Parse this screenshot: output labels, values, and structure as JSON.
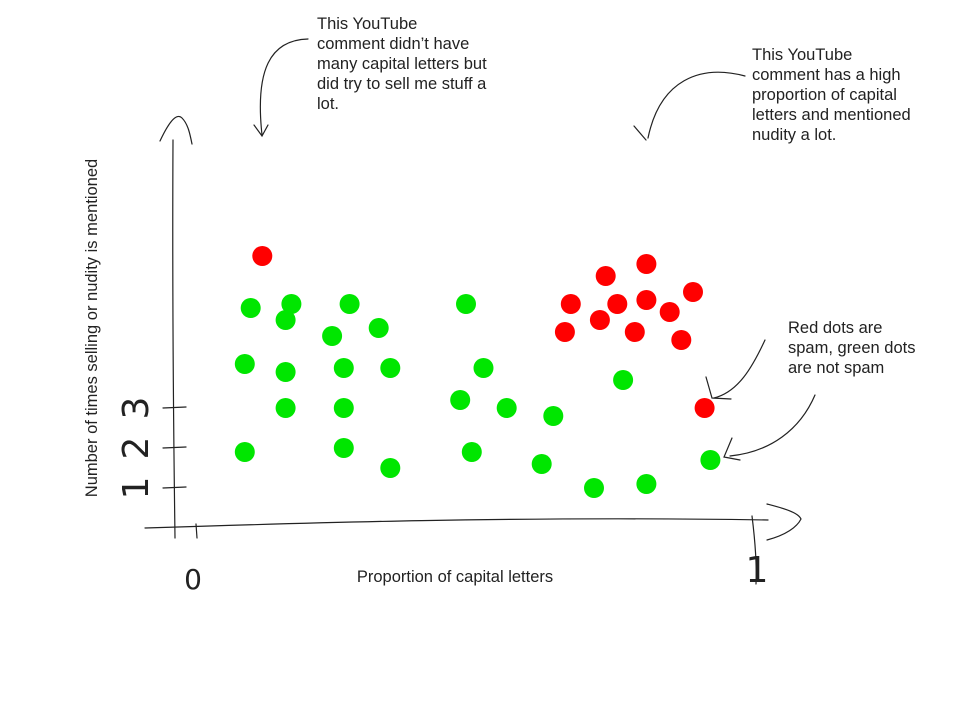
{
  "chart_data": {
    "type": "scatter",
    "xlabel": "Proportion of capital letters",
    "ylabel": "Number of times selling or nudity is mentioned",
    "xlim": [
      0,
      1
    ],
    "x_tick_labels": [
      "0",
      "1"
    ],
    "y_tick_labels": [
      "1",
      "2",
      "3"
    ],
    "y_ticks": [
      1,
      2,
      3
    ],
    "grid": false,
    "series": [
      {
        "color": "#ff0000",
        "points": [
          {
            "x": 0.15,
            "y": 6.8
          },
          {
            "x": 0.81,
            "y": 6.6
          },
          {
            "x": 0.74,
            "y": 6.3
          },
          {
            "x": 0.89,
            "y": 5.9
          },
          {
            "x": 0.81,
            "y": 5.7
          },
          {
            "x": 0.68,
            "y": 5.6
          },
          {
            "x": 0.76,
            "y": 5.6
          },
          {
            "x": 0.85,
            "y": 5.4
          },
          {
            "x": 0.73,
            "y": 5.2
          },
          {
            "x": 0.67,
            "y": 4.9
          },
          {
            "x": 0.79,
            "y": 4.9
          },
          {
            "x": 0.87,
            "y": 4.7
          },
          {
            "x": 0.91,
            "y": 3.0
          }
        ]
      },
      {
        "color": "#00e600",
        "points": [
          {
            "x": 0.13,
            "y": 5.5
          },
          {
            "x": 0.2,
            "y": 5.6
          },
          {
            "x": 0.3,
            "y": 5.6
          },
          {
            "x": 0.5,
            "y": 5.6
          },
          {
            "x": 0.19,
            "y": 5.2
          },
          {
            "x": 0.35,
            "y": 5.0
          },
          {
            "x": 0.27,
            "y": 4.8
          },
          {
            "x": 0.12,
            "y": 4.1
          },
          {
            "x": 0.19,
            "y": 3.9
          },
          {
            "x": 0.29,
            "y": 4.0
          },
          {
            "x": 0.37,
            "y": 4.0
          },
          {
            "x": 0.53,
            "y": 4.0
          },
          {
            "x": 0.77,
            "y": 3.7
          },
          {
            "x": 0.49,
            "y": 3.2
          },
          {
            "x": 0.19,
            "y": 3.0
          },
          {
            "x": 0.29,
            "y": 3.0
          },
          {
            "x": 0.57,
            "y": 3.0
          },
          {
            "x": 0.65,
            "y": 2.8
          },
          {
            "x": 0.12,
            "y": 1.9
          },
          {
            "x": 0.29,
            "y": 2.0
          },
          {
            "x": 0.51,
            "y": 1.9
          },
          {
            "x": 0.63,
            "y": 1.6
          },
          {
            "x": 0.37,
            "y": 1.5
          },
          {
            "x": 0.92,
            "y": 1.7
          },
          {
            "x": 0.72,
            "y": 1.0
          },
          {
            "x": 0.81,
            "y": 1.1
          }
        ]
      }
    ]
  },
  "annotations": {
    "top_left": "This YouTube\ncomment didn’t have\nmany capital letters but\ndid try to sell me stuff a\nlot.",
    "top_right": "This YouTube\ncomment has a high\nproportion of capital\nletters and mentioned\nnudity a lot.",
    "legend": "Red dots are\nspam, green dots\nare not spam"
  }
}
